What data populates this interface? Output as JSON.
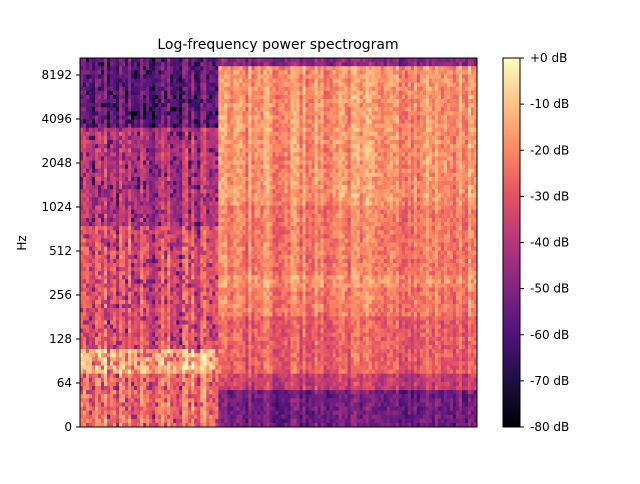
{
  "chart_data": {
    "type": "heatmap",
    "title": "Log-frequency power spectrogram",
    "xlabel": "",
    "ylabel": "Hz",
    "y_scale": "log2",
    "y_ticks": [
      {
        "value": 0,
        "label": "0"
      },
      {
        "value": 64,
        "label": "64"
      },
      {
        "value": 128,
        "label": "128"
      },
      {
        "value": 256,
        "label": "256"
      },
      {
        "value": 512,
        "label": "512"
      },
      {
        "value": 1024,
        "label": "1024"
      },
      {
        "value": 2048,
        "label": "2048"
      },
      {
        "value": 4096,
        "label": "4096"
      },
      {
        "value": 8192,
        "label": "8192"
      }
    ],
    "colorbar": {
      "colormap": "magma",
      "range": [
        -80,
        0
      ],
      "ticks": [
        {
          "value": 0,
          "label": "+0 dB"
        },
        {
          "value": -10,
          "label": "-10 dB"
        },
        {
          "value": -20,
          "label": "-20 dB"
        },
        {
          "value": -30,
          "label": "-30 dB"
        },
        {
          "value": -40,
          "label": "-40 dB"
        },
        {
          "value": -50,
          "label": "-50 dB"
        },
        {
          "value": -60,
          "label": "-60 dB"
        },
        {
          "value": -70,
          "label": "-70 dB"
        },
        {
          "value": -80,
          "label": "-80 dB"
        }
      ]
    },
    "grid": false,
    "legend": "none",
    "colors": {
      "magma_stops": [
        "#000004",
        "#1c1044",
        "#4f127b",
        "#812581",
        "#b5367a",
        "#e55064",
        "#fb8761",
        "#fec287",
        "#fcfdbf"
      ]
    }
  }
}
